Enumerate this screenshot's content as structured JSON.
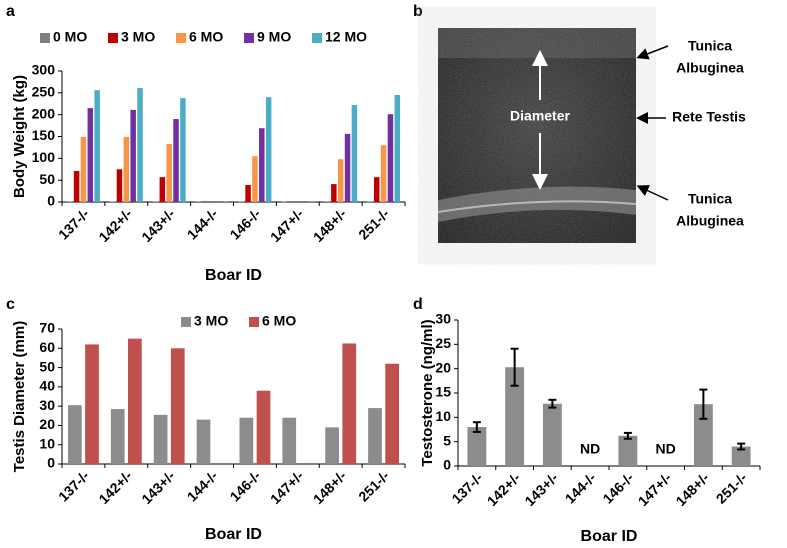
{
  "panel_labels": [
    "a",
    "b",
    "c",
    "d"
  ],
  "chart_data": [
    {
      "type": "bar",
      "x_label": "Boar ID",
      "y_label": "Body Weight (kg)",
      "categories": [
        "137-/-",
        "142+/-",
        "143+/-",
        "144-/-",
        "146-/-",
        "147+/-",
        "148+/-",
        "251-/-"
      ],
      "series": [
        {
          "name": "0 MO",
          "color": "#7f7f7f",
          "values": [
            1,
            1,
            1,
            1,
            1,
            1,
            1,
            1
          ]
        },
        {
          "name": "3 MO",
          "color": "#c00000",
          "values": [
            71,
            75,
            57,
            null,
            39,
            null,
            41,
            57
          ]
        },
        {
          "name": "6 MO",
          "color": "#f79646",
          "values": [
            149,
            149,
            133,
            null,
            105,
            null,
            98,
            130
          ]
        },
        {
          "name": "9 MO",
          "color": "#7030a0",
          "values": [
            215,
            211,
            190,
            null,
            169,
            null,
            156,
            201
          ]
        },
        {
          "name": "12 MO",
          "color": "#4bacc6",
          "values": [
            256,
            261,
            238,
            2,
            240,
            2,
            222,
            245
          ]
        }
      ],
      "ylim": [
        0,
        300
      ],
      "yticks": [
        0,
        50,
        100,
        150,
        200,
        250,
        300
      ],
      "grid": false,
      "legend": "top"
    },
    {
      "type": "bar",
      "x_label": "Boar ID",
      "y_label": "Testis Diameter (mm)",
      "categories": [
        "137-/-",
        "142+/-",
        "143+/-",
        "144-/-",
        "146-/-",
        "147+/-",
        "148+/-",
        "251-/-"
      ],
      "series": [
        {
          "name": "3 MO",
          "color": "#8c8c8c",
          "values": [
            30.5,
            28.5,
            25.5,
            23,
            24,
            24,
            19,
            29
          ]
        },
        {
          "name": "6 MO",
          "color": "#c0504d",
          "values": [
            62,
            65,
            60,
            null,
            38,
            null,
            62.5,
            52
          ]
        }
      ],
      "ylim": [
        0,
        70
      ],
      "yticks": [
        0,
        10,
        20,
        30,
        40,
        50,
        60,
        70
      ],
      "grid": false,
      "legend": "top"
    },
    {
      "type": "bar",
      "x_label": "Boar ID",
      "y_label": "Testosterone (ng/ml)",
      "categories": [
        "137-/-",
        "142+/-",
        "143+/-",
        "144-/-",
        "146-/-",
        "147+/-",
        "148+/-",
        "251-/-"
      ],
      "values": [
        8,
        20.3,
        12.8,
        null,
        6.2,
        null,
        12.7,
        4
      ],
      "errors": [
        1,
        3.8,
        0.8,
        null,
        0.6,
        null,
        3,
        0.6
      ],
      "value_labels": [
        null,
        null,
        null,
        "ND",
        null,
        "ND",
        null,
        null
      ],
      "color": "#8c8c8c",
      "ylim": [
        0,
        30
      ],
      "yticks": [
        0,
        5,
        10,
        15,
        20,
        25,
        30
      ],
      "grid": false
    }
  ],
  "image_panel": {
    "inner_label": "Diameter",
    "labels": [
      [
        "Tunica",
        "Albuginea"
      ],
      [
        "Rete Testis"
      ],
      [
        "Tunica",
        "Albuginea"
      ]
    ]
  }
}
